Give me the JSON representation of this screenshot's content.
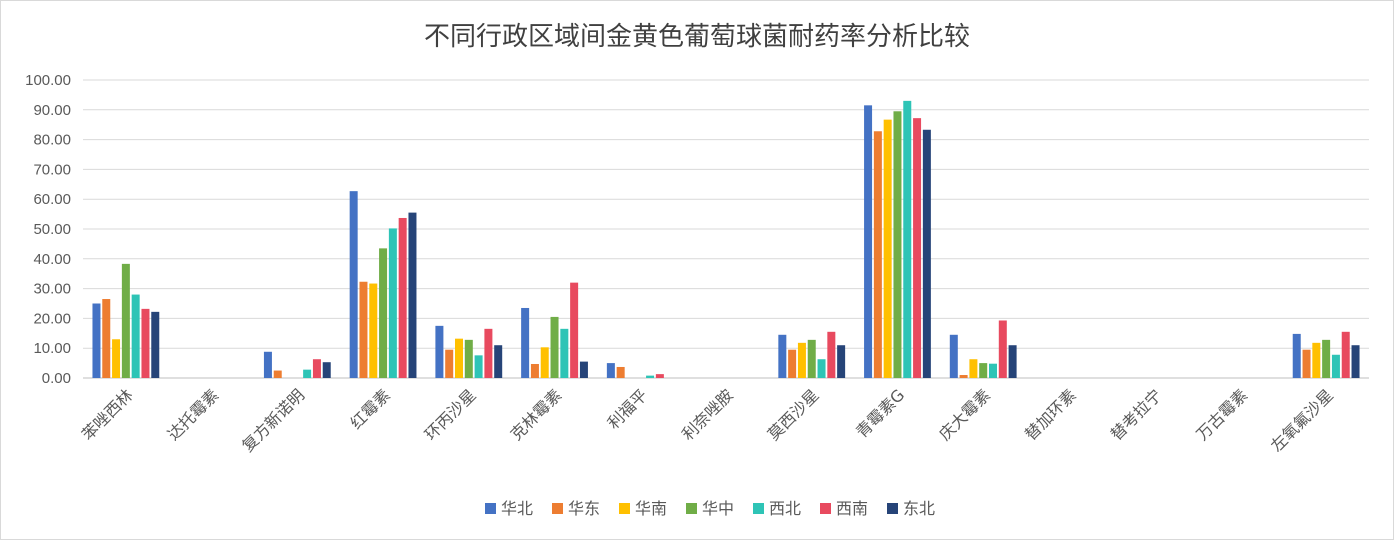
{
  "chart_data": {
    "type": "bar",
    "title": "不同行政区域间金黄色葡萄球菌耐药率分析比较",
    "xlabel": "",
    "ylabel": "",
    "ylim": [
      0,
      100
    ],
    "yticks": [
      "0.00",
      "10.00",
      "20.00",
      "30.00",
      "40.00",
      "50.00",
      "60.00",
      "70.00",
      "80.00",
      "90.00",
      "100.00"
    ],
    "grid": true,
    "legend_position": "bottom",
    "categories": [
      "苯唑西林",
      "达托霉素",
      "复方新诺明",
      "红霉素",
      "环丙沙星",
      "克林霉素",
      "利福平",
      "利奈唑胺",
      "莫西沙星",
      "青霉素G",
      "庆大霉素",
      "替加环素",
      "替考拉宁",
      "万古霉素",
      "左氧氟沙星"
    ],
    "series": [
      {
        "name": "华北",
        "color": "#4472C4",
        "values": [
          25.0,
          0,
          8.8,
          62.7,
          17.5,
          23.5,
          5.0,
          0,
          14.5,
          91.5,
          14.5,
          0,
          0,
          0,
          14.8
        ]
      },
      {
        "name": "华东",
        "color": "#ED7D31",
        "values": [
          26.5,
          0,
          2.5,
          32.3,
          9.5,
          4.7,
          3.7,
          0,
          9.5,
          82.8,
          1.0,
          0,
          0,
          0,
          9.5
        ]
      },
      {
        "name": "华南",
        "color": "#FFC000",
        "values": [
          13.0,
          0,
          0,
          31.7,
          13.2,
          10.3,
          0,
          0,
          11.8,
          86.7,
          6.3,
          0,
          0,
          0,
          11.8
        ]
      },
      {
        "name": "华中",
        "color": "#70AD47",
        "values": [
          38.3,
          0,
          0,
          43.5,
          12.8,
          20.5,
          0,
          0,
          12.8,
          89.5,
          5.0,
          0,
          0,
          0,
          12.8
        ]
      },
      {
        "name": "西北",
        "color": "#2EC4B6",
        "values": [
          28.0,
          0,
          2.8,
          50.2,
          7.6,
          16.5,
          0.8,
          0,
          6.3,
          93.0,
          4.8,
          0,
          0,
          0,
          7.8
        ]
      },
      {
        "name": "西南",
        "color": "#E84A5F",
        "values": [
          23.2,
          0,
          6.3,
          53.7,
          16.5,
          32.0,
          1.3,
          0,
          15.5,
          87.2,
          19.3,
          0,
          0,
          0,
          15.5
        ]
      },
      {
        "name": "东北",
        "color": "#264478",
        "values": [
          22.2,
          0,
          5.3,
          55.5,
          11.0,
          5.5,
          0,
          0,
          11.0,
          83.3,
          11.0,
          0,
          0,
          0,
          11.0
        ]
      }
    ]
  }
}
